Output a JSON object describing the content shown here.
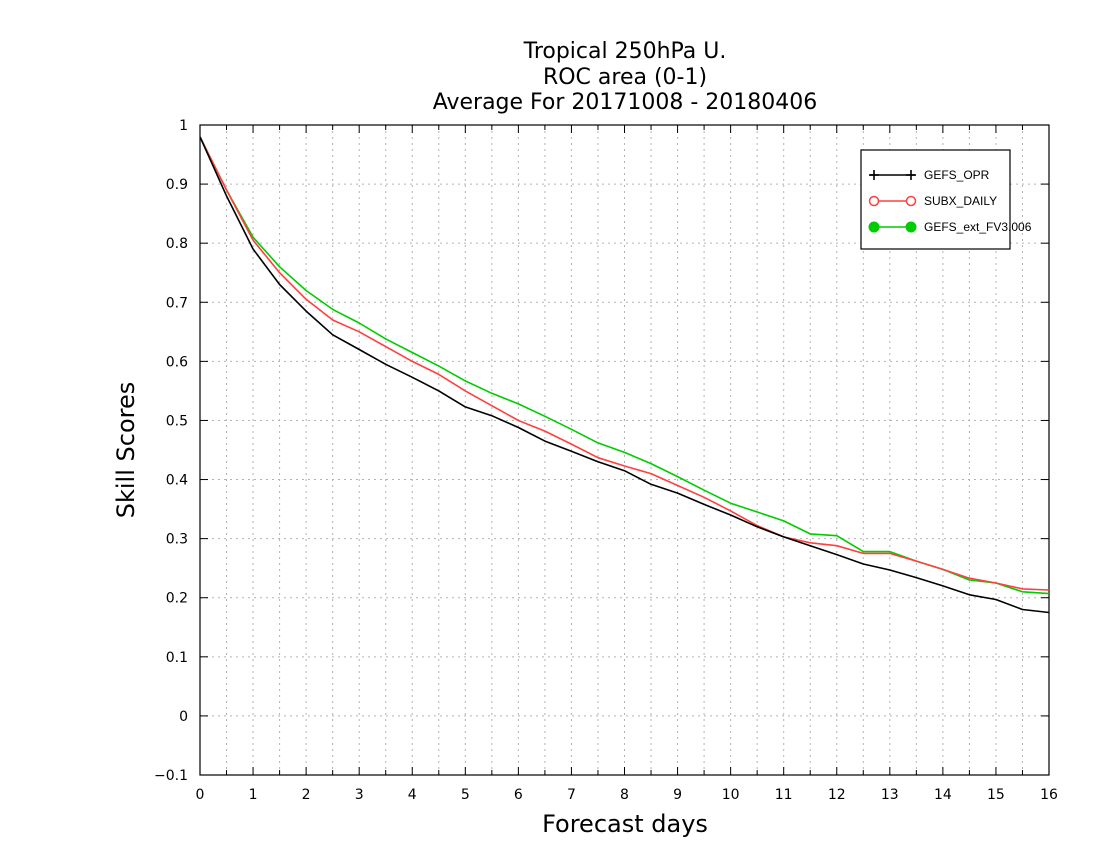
{
  "chart_data": {
    "type": "line",
    "title_lines": [
      "Tropical 250hPa U.",
      "ROC area (0-1)",
      "Average For 20171008 - 20180406"
    ],
    "xlabel": "Forecast days",
    "ylabel": "Skill Scores",
    "xlim": [
      0,
      16
    ],
    "ylim": [
      -0.1,
      1
    ],
    "x_ticks": [
      "0",
      "1",
      "2",
      "3",
      "4",
      "5",
      "6",
      "7",
      "8",
      "9",
      "10",
      "11",
      "12",
      "13",
      "14",
      "15",
      "16"
    ],
    "y_ticks": [
      "−0.1",
      "0",
      "0.1",
      "0.2",
      "0.3",
      "0.4",
      "0.5",
      "0.6",
      "0.7",
      "0.8",
      "0.9",
      "1"
    ],
    "grid": true,
    "legend_position": "top-right",
    "x": [
      0,
      0.5,
      1,
      1.5,
      2,
      2.5,
      3,
      3.5,
      4,
      4.5,
      5,
      5.5,
      6,
      6.5,
      7,
      7.5,
      8,
      8.5,
      9,
      9.5,
      10,
      10.5,
      11,
      11.5,
      12,
      12.5,
      13,
      13.5,
      14,
      14.5,
      15,
      15.5,
      16
    ],
    "series": [
      {
        "name": "GEFS_OPR",
        "color": "#000000",
        "marker": "plus",
        "values": [
          0.98,
          0.88,
          0.79,
          0.73,
          0.685,
          0.645,
          0.62,
          0.595,
          0.573,
          0.55,
          0.523,
          0.508,
          0.488,
          0.465,
          0.448,
          0.43,
          0.415,
          0.392,
          0.377,
          0.358,
          0.34,
          0.32,
          0.303,
          0.288,
          0.273,
          0.257,
          0.247,
          0.234,
          0.22,
          0.205,
          0.197,
          0.18,
          0.175
        ]
      },
      {
        "name": "SUBX_DAILY",
        "color": "#ff4040",
        "marker": "open-circle",
        "values": [
          0.98,
          0.89,
          0.805,
          0.75,
          0.705,
          0.67,
          0.65,
          0.625,
          0.6,
          0.578,
          0.55,
          0.525,
          0.5,
          0.482,
          0.46,
          0.437,
          0.423,
          0.41,
          0.39,
          0.37,
          0.347,
          0.322,
          0.303,
          0.293,
          0.288,
          0.275,
          0.275,
          0.262,
          0.248,
          0.233,
          0.225,
          0.215,
          0.213
        ]
      },
      {
        "name": "GEFS_ext_FV3.006",
        "color": "#00cc00",
        "marker": "filled-circle",
        "values": [
          0.98,
          0.89,
          0.81,
          0.76,
          0.72,
          0.688,
          0.665,
          0.638,
          0.615,
          0.592,
          0.567,
          0.546,
          0.528,
          0.507,
          0.485,
          0.462,
          0.446,
          0.427,
          0.405,
          0.382,
          0.36,
          0.345,
          0.33,
          0.308,
          0.305,
          0.278,
          0.278,
          0.262,
          0.248,
          0.23,
          0.225,
          0.21,
          0.207
        ]
      }
    ]
  }
}
